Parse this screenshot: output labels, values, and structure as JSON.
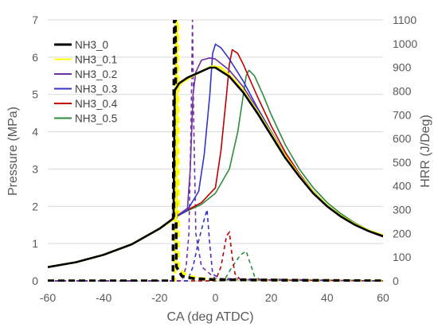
{
  "chart_data": {
    "type": "line",
    "xlabel": "CA (deg ATDC)",
    "ylabel": "Pressure (MPa)",
    "y2label": "HRR (J/Deg)",
    "xlim": [
      -60,
      60
    ],
    "ylim": [
      0,
      7
    ],
    "y2lim": [
      0,
      1100
    ],
    "x_ticks": [
      -60,
      -40,
      -20,
      0,
      20,
      40,
      60
    ],
    "y_ticks": [
      0,
      1,
      2,
      3,
      4,
      5,
      6,
      7
    ],
    "y2_ticks": [
      0,
      100,
      200,
      300,
      400,
      500,
      600,
      700,
      800,
      900,
      1000,
      1100
    ],
    "grid": "horizontal",
    "legend_position": "top-left",
    "series": [
      {
        "name": "NH3_0",
        "color": "#000000",
        "pressure": [
          [
            -60,
            0.37
          ],
          [
            -50,
            0.5
          ],
          [
            -40,
            0.7
          ],
          [
            -30,
            0.98
          ],
          [
            -20,
            1.4
          ],
          [
            -15,
            1.68
          ],
          [
            -14.6,
            5.1
          ],
          [
            -13,
            5.3
          ],
          [
            -10,
            5.45
          ],
          [
            -5,
            5.62
          ],
          [
            -2,
            5.72
          ],
          [
            0,
            5.72
          ],
          [
            5,
            5.48
          ],
          [
            10,
            5.05
          ],
          [
            15,
            4.5
          ],
          [
            20,
            3.9
          ],
          [
            25,
            3.3
          ],
          [
            30,
            2.8
          ],
          [
            35,
            2.35
          ],
          [
            40,
            2.0
          ],
          [
            45,
            1.72
          ],
          [
            50,
            1.5
          ],
          [
            55,
            1.33
          ],
          [
            60,
            1.2
          ]
        ],
        "hrr": [
          [
            -60,
            0
          ],
          [
            -15.2,
            0
          ],
          [
            -15,
            600
          ],
          [
            -14.7,
            1100
          ],
          [
            -14.3,
            1100
          ],
          [
            -14,
            60
          ],
          [
            -12,
            20
          ],
          [
            -8,
            10
          ],
          [
            0,
            5
          ],
          [
            60,
            0
          ]
        ]
      },
      {
        "name": "NH3_0.1",
        "color": "#ffff00",
        "pressure": [
          [
            -60,
            0.37
          ],
          [
            -50,
            0.5
          ],
          [
            -40,
            0.7
          ],
          [
            -30,
            0.98
          ],
          [
            -20,
            1.4
          ],
          [
            -14,
            1.7
          ],
          [
            -13.8,
            5.15
          ],
          [
            -12,
            5.32
          ],
          [
            -8,
            5.5
          ],
          [
            -4,
            5.66
          ],
          [
            -1,
            5.76
          ],
          [
            2,
            5.72
          ],
          [
            6,
            5.45
          ],
          [
            10,
            5.1
          ],
          [
            15,
            4.55
          ],
          [
            20,
            3.95
          ],
          [
            25,
            3.35
          ],
          [
            30,
            2.83
          ],
          [
            35,
            2.38
          ],
          [
            40,
            2.02
          ],
          [
            45,
            1.74
          ],
          [
            50,
            1.52
          ],
          [
            55,
            1.35
          ],
          [
            60,
            1.22
          ]
        ],
        "hrr": [
          [
            -60,
            0
          ],
          [
            -14.5,
            0
          ],
          [
            -14.2,
            600
          ],
          [
            -13.9,
            1100
          ],
          [
            -13.5,
            1100
          ],
          [
            -13.2,
            50
          ],
          [
            -10,
            20
          ],
          [
            -5,
            10
          ],
          [
            0,
            5
          ],
          [
            60,
            0
          ]
        ]
      },
      {
        "name": "NH3_0.2",
        "color": "#7030a0",
        "pressure": [
          [
            -60,
            0.37
          ],
          [
            -50,
            0.5
          ],
          [
            -40,
            0.7
          ],
          [
            -30,
            0.98
          ],
          [
            -20,
            1.4
          ],
          [
            -15,
            1.68
          ],
          [
            -10,
            1.95
          ],
          [
            -9,
            3.0
          ],
          [
            -8,
            5.0
          ],
          [
            -7,
            5.6
          ],
          [
            -5,
            5.92
          ],
          [
            -2,
            5.98
          ],
          [
            0,
            5.95
          ],
          [
            5,
            5.65
          ],
          [
            10,
            5.2
          ],
          [
            15,
            4.6
          ],
          [
            20,
            3.95
          ],
          [
            25,
            3.35
          ],
          [
            30,
            2.82
          ],
          [
            35,
            2.37
          ],
          [
            40,
            2.01
          ],
          [
            45,
            1.73
          ],
          [
            50,
            1.5
          ],
          [
            55,
            1.33
          ],
          [
            60,
            1.2
          ]
        ],
        "hrr": [
          [
            -60,
            0
          ],
          [
            -12,
            0
          ],
          [
            -10.5,
            60
          ],
          [
            -9.5,
            200
          ],
          [
            -8.8,
            600
          ],
          [
            -8.2,
            1100
          ],
          [
            -7.8,
            700
          ],
          [
            -7,
            200
          ],
          [
            -5,
            60
          ],
          [
            0,
            10
          ],
          [
            60,
            0
          ]
        ]
      },
      {
        "name": "NH3_0.3",
        "color": "#3333cc",
        "pressure": [
          [
            -60,
            0.37
          ],
          [
            -50,
            0.5
          ],
          [
            -40,
            0.7
          ],
          [
            -30,
            0.98
          ],
          [
            -20,
            1.4
          ],
          [
            -15,
            1.68
          ],
          [
            -10,
            1.9
          ],
          [
            -6,
            2.4
          ],
          [
            -4,
            3.4
          ],
          [
            -2,
            5.0
          ],
          [
            -1,
            6.1
          ],
          [
            0,
            6.35
          ],
          [
            2,
            6.25
          ],
          [
            5,
            5.95
          ],
          [
            10,
            5.35
          ],
          [
            15,
            4.65
          ],
          [
            20,
            4.0
          ],
          [
            25,
            3.38
          ],
          [
            30,
            2.85
          ],
          [
            35,
            2.4
          ],
          [
            40,
            2.03
          ],
          [
            45,
            1.75
          ],
          [
            50,
            1.52
          ],
          [
            55,
            1.34
          ],
          [
            60,
            1.21
          ]
        ],
        "hrr": [
          [
            -60,
            0
          ],
          [
            -10,
            0
          ],
          [
            -8,
            60
          ],
          [
            -6,
            170
          ],
          [
            -4,
            260
          ],
          [
            -3,
            300
          ],
          [
            -2,
            150
          ],
          [
            -1,
            30
          ],
          [
            2,
            5
          ],
          [
            60,
            0
          ]
        ]
      },
      {
        "name": "NH3_0.4",
        "color": "#c00000",
        "pressure": [
          [
            -60,
            0.37
          ],
          [
            -50,
            0.5
          ],
          [
            -40,
            0.7
          ],
          [
            -30,
            0.98
          ],
          [
            -20,
            1.4
          ],
          [
            -15,
            1.68
          ],
          [
            -10,
            1.9
          ],
          [
            -5,
            2.1
          ],
          [
            0,
            2.5
          ],
          [
            2,
            3.5
          ],
          [
            4,
            5.0
          ],
          [
            5,
            5.8
          ],
          [
            6,
            6.2
          ],
          [
            8,
            6.1
          ],
          [
            10,
            5.8
          ],
          [
            15,
            4.95
          ],
          [
            20,
            4.15
          ],
          [
            25,
            3.45
          ],
          [
            30,
            2.88
          ],
          [
            35,
            2.4
          ],
          [
            40,
            2.03
          ],
          [
            45,
            1.74
          ],
          [
            50,
            1.5
          ],
          [
            55,
            1.32
          ],
          [
            60,
            1.18
          ]
        ],
        "hrr": [
          [
            -60,
            0
          ],
          [
            0,
            0
          ],
          [
            2,
            60
          ],
          [
            4,
            190
          ],
          [
            5,
            205
          ],
          [
            6,
            100
          ],
          [
            7,
            30
          ],
          [
            9,
            5
          ],
          [
            60,
            0
          ]
        ]
      },
      {
        "name": "NH3_0.5",
        "color": "#2e8b3e",
        "pressure": [
          [
            -60,
            0.37
          ],
          [
            -50,
            0.5
          ],
          [
            -40,
            0.7
          ],
          [
            -30,
            0.98
          ],
          [
            -20,
            1.4
          ],
          [
            -15,
            1.68
          ],
          [
            -10,
            1.88
          ],
          [
            -5,
            2.05
          ],
          [
            0,
            2.35
          ],
          [
            5,
            3.0
          ],
          [
            8,
            4.0
          ],
          [
            10,
            5.0
          ],
          [
            11,
            5.5
          ],
          [
            12,
            5.65
          ],
          [
            14,
            5.5
          ],
          [
            17,
            5.0
          ],
          [
            20,
            4.45
          ],
          [
            25,
            3.65
          ],
          [
            30,
            3.0
          ],
          [
            35,
            2.5
          ],
          [
            40,
            2.1
          ],
          [
            45,
            1.8
          ],
          [
            50,
            1.55
          ],
          [
            55,
            1.36
          ],
          [
            60,
            1.23
          ]
        ],
        "hrr": [
          [
            -60,
            0
          ],
          [
            3,
            0
          ],
          [
            6,
            60
          ],
          [
            9,
            110
          ],
          [
            11,
            125
          ],
          [
            12,
            90
          ],
          [
            14,
            20
          ],
          [
            16,
            5
          ],
          [
            60,
            0
          ]
        ]
      }
    ]
  }
}
